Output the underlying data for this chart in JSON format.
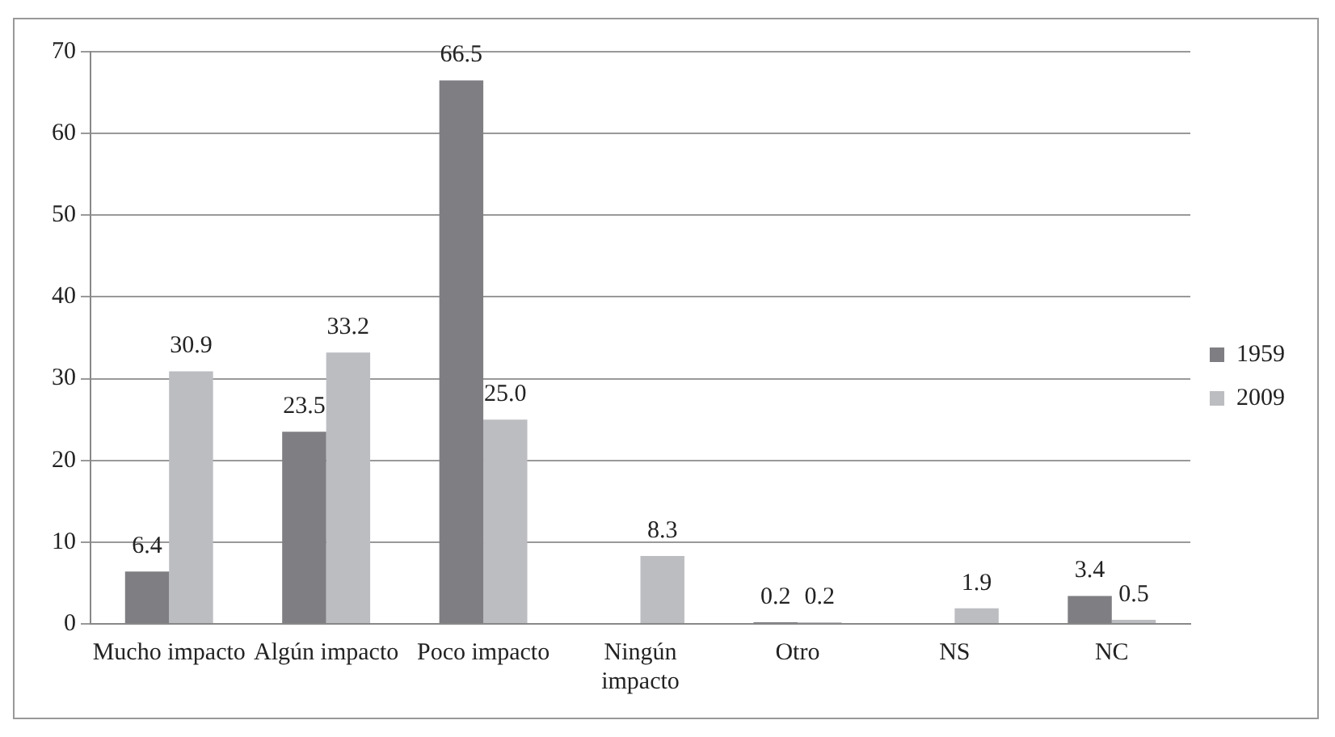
{
  "chart_data": {
    "type": "bar",
    "categories": [
      "Mucho impacto",
      "Algún impacto",
      "Poco impacto",
      "Ningún impacto",
      "Otro",
      "NS",
      "NC"
    ],
    "series": [
      {
        "name": "1959",
        "color": "#7e7e83",
        "values": [
          6.4,
          23.5,
          66.5,
          null,
          0.2,
          null,
          3.4
        ],
        "value_labels": [
          "6.4",
          "23.5",
          "66.5",
          null,
          "0.2",
          null,
          "3.4"
        ]
      },
      {
        "name": "2009",
        "color": "#bcbdc1",
        "values": [
          30.9,
          33.2,
          25.0,
          8.3,
          0.2,
          1.9,
          0.5
        ],
        "value_labels": [
          "30.9",
          "33.2",
          "25.0",
          "8.3",
          "0.2",
          "1.9",
          "0.5"
        ]
      }
    ],
    "ylim": [
      0,
      70
    ],
    "yticks": [
      0,
      10,
      20,
      30,
      40,
      50,
      60,
      70
    ],
    "grid": "y",
    "legend": "right"
  }
}
